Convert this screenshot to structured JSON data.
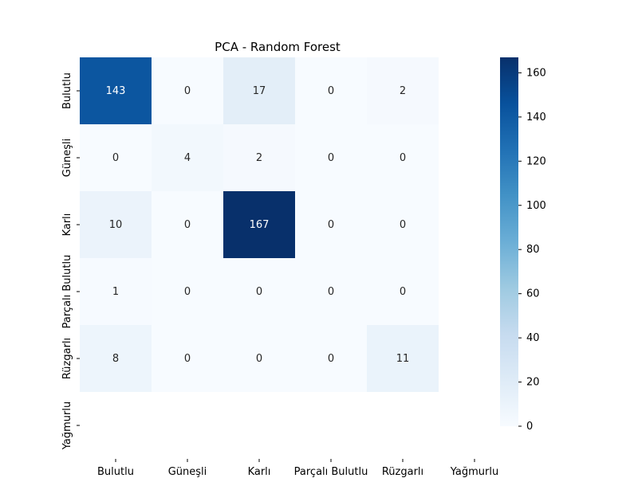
{
  "chart_data": {
    "type": "heatmap",
    "title": "PCA - Random Forest",
    "xlabel": "",
    "ylabel": "",
    "row_labels": [
      "Bulutlu",
      "Güneşli",
      "Karlı",
      "Parçalı Bulutlu",
      "Rüzgarlı",
      "Yağmurlu"
    ],
    "col_labels": [
      "Bulutlu",
      "Güneşli",
      "Karlı",
      "Parçalı Bulutlu",
      "Rüzgarlı",
      "Yağmurlu"
    ],
    "values": [
      [
        143,
        0,
        17,
        0,
        2,
        null
      ],
      [
        0,
        4,
        2,
        0,
        0,
        null
      ],
      [
        10,
        0,
        167,
        0,
        0,
        null
      ],
      [
        1,
        0,
        0,
        0,
        0,
        null
      ],
      [
        8,
        0,
        0,
        0,
        11,
        null
      ],
      [
        null,
        null,
        null,
        null,
        null,
        null
      ]
    ],
    "colormap": "Blues",
    "vmin": 0,
    "vmax": 167,
    "colorbar_ticks": [
      0,
      20,
      40,
      60,
      80,
      100,
      120,
      140,
      160
    ],
    "grid": false
  }
}
